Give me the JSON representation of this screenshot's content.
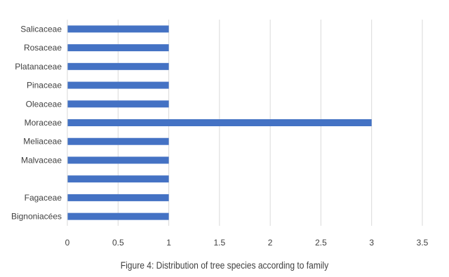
{
  "chart_data": {
    "type": "bar",
    "orientation": "horizontal",
    "categories": [
      "Bignoniacées",
      "Fagaceae",
      "",
      "Malvaceae",
      "Meliaceae",
      "Moraceae",
      "Oleaceae",
      "Pinaceae",
      "Platanaceae",
      "Rosaceae",
      "Salicaceae"
    ],
    "values": [
      1,
      1,
      1,
      1,
      1,
      3,
      1,
      1,
      1,
      1,
      1
    ],
    "xlim": [
      0,
      3.5
    ],
    "x_ticks": [
      "0",
      "0.5",
      "1",
      "1.5",
      "2",
      "2.5",
      "3",
      "3.5"
    ],
    "grid": "vertical",
    "bar_color": "#4472C4",
    "caption": "Figure 4: Distribution of tree species according to family"
  }
}
